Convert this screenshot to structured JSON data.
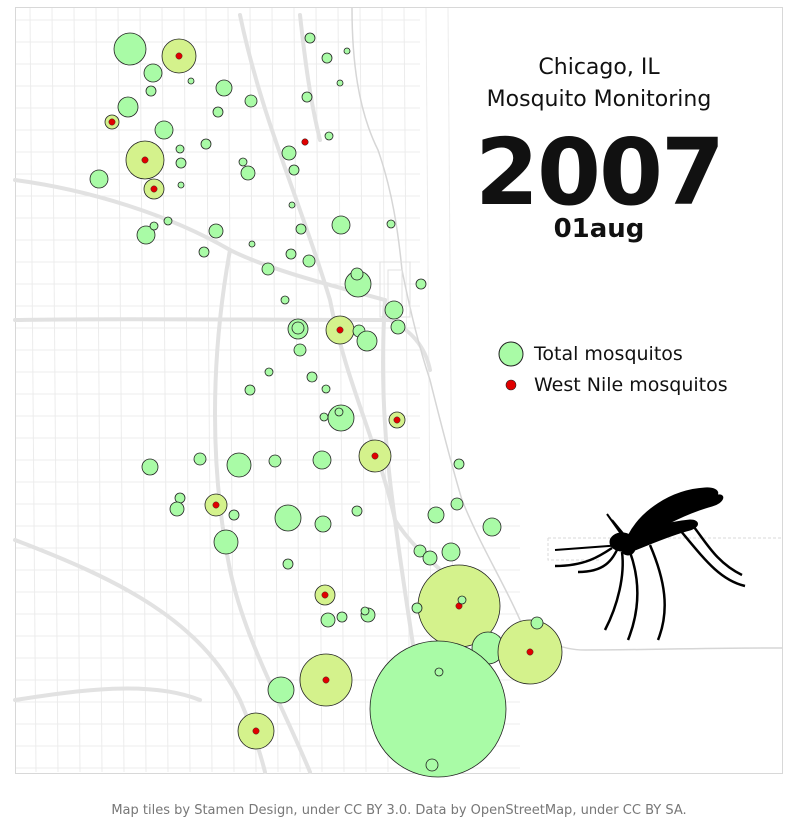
{
  "title": {
    "line1": "Chicago, IL",
    "line2": "Mosquito Monitoring",
    "year": "2007",
    "date": "01aug"
  },
  "legend": {
    "total_label": "Total mosquitos",
    "wnv_label": "West Nile mosquitos"
  },
  "credit": "Map tiles by Stamen Design, under CC BY 3.0. Data by OpenStreetMap, under CC BY SA.",
  "colors": {
    "total_fill": "#a9fba6",
    "wnv_station_fill": "#d4f28c",
    "wnv_dot": "#e00000",
    "stroke": "#222222",
    "road": "#e4e4e4",
    "background": "#ffffff"
  },
  "icons": [
    "mosquito-icon"
  ]
}
